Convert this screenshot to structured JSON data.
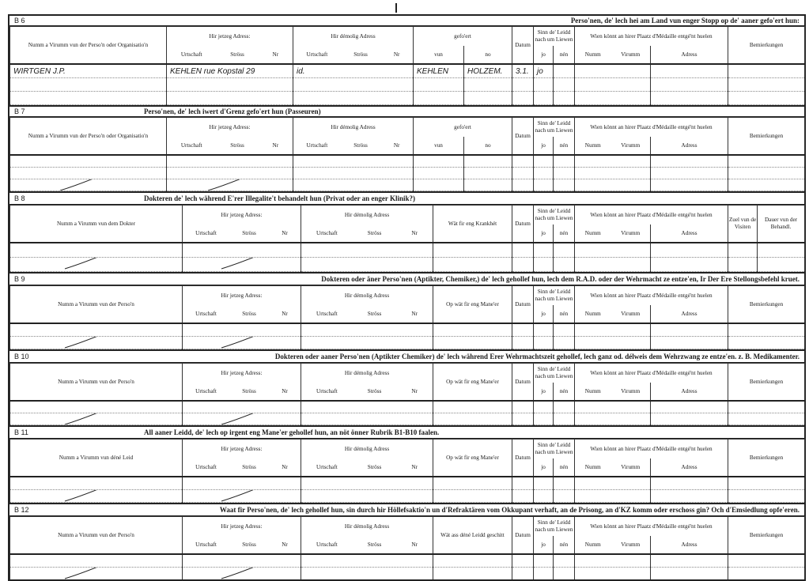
{
  "sections": [
    {
      "code": "B 6",
      "title": "Perso'nen, de' lech hei am Land vun enger Stopp op de' aaner gefo'ert hun:",
      "columns": [
        {
          "label": "Numm a Virumm vun der Perso'n oder Organisatio'n"
        },
        {
          "label": "Hir jetzeg Adress:",
          "subs": [
            [
              "Urtschaft",
              "Ströss",
              "Nr"
            ]
          ]
        },
        {
          "label": "Hir démolig Adress",
          "subs": [
            [
              "Urtschaft",
              "Ströss",
              "Nr"
            ]
          ]
        },
        {
          "label": "gefo'ert",
          "subs": [
            [
              "vun"
            ],
            [
              "no"
            ]
          ]
        },
        {
          "label": "Datum"
        },
        {
          "label": "Sinn de' Leidd nach um Liewen",
          "subs": [
            [
              "jo"
            ],
            [
              "nén"
            ]
          ]
        },
        {
          "label": "Wien könnt an hirer Plaatz d'Médaille entgé'nt huelen",
          "subs": [
            [
              "Numm",
              "Virumm"
            ],
            [
              "Adress"
            ]
          ]
        },
        {
          "label": "Bemierkungen"
        }
      ],
      "rows": [
        [
          "WIRTGEN J.P.",
          "KEHLEN rue Kopstal 29",
          "id.",
          "KEHLEN",
          "HOLZEM.",
          "3.1.",
          "jo",
          "",
          "",
          "",
          ""
        ],
        [
          "",
          "",
          "",
          "",
          "",
          "",
          "",
          "",
          "",
          "",
          ""
        ],
        [
          "",
          "",
          "",
          "",
          "",
          "",
          "",
          "",
          "",
          "",
          ""
        ]
      ]
    },
    {
      "code": "B 7",
      "title": "Perso'nen, de' lech iwert d'Grenz gefo'ert hun (Passeuren)",
      "columns": [
        {
          "label": "Numm a Virumm vun der Perso'n oder Organisatio'n"
        },
        {
          "label": "Hir jetzeg Adress:",
          "subs": [
            [
              "Urtschaft",
              "Ströss",
              "Nr"
            ]
          ]
        },
        {
          "label": "Hir démolig Adress",
          "subs": [
            [
              "Urtschaft",
              "Ströss",
              "Nr"
            ]
          ]
        },
        {
          "label": "gefo'ert",
          "subs": [
            [
              "vun"
            ],
            [
              "no"
            ]
          ]
        },
        {
          "label": "Datum"
        },
        {
          "label": "Sinn de' Leidd nach um Liewen",
          "subs": [
            [
              "jo"
            ],
            [
              "nén"
            ]
          ]
        },
        {
          "label": "Wien könnt an hirer Plaatz d'Médaille entgé'nt huelen",
          "subs": [
            [
              "Numm",
              "Virumm"
            ],
            [
              "Adress"
            ]
          ]
        },
        {
          "label": "Bemierkungen"
        }
      ],
      "rows": [
        [
          "",
          "",
          "",
          "",
          "",
          "",
          "",
          "",
          "",
          "",
          ""
        ],
        [
          "",
          "",
          "",
          "",
          "",
          "",
          "",
          "",
          "",
          "",
          ""
        ],
        [
          "",
          "",
          "",
          "",
          "",
          "",
          "",
          "",
          "",
          "",
          ""
        ]
      ]
    },
    {
      "code": "B 8",
      "title": "Dokteren de' lech während E'rer Illegalite't behandelt hun (Privat oder an enger Klinik?)",
      "columns": [
        {
          "label": "Numm a Virumm vun dem Dokter"
        },
        {
          "label": "Hir jetzeg Adress:",
          "subs": [
            [
              "Urtschaft",
              "Ströss",
              "Nr"
            ]
          ]
        },
        {
          "label": "Hir démolig Adress",
          "subs": [
            [
              "Urtschaft",
              "Ströss",
              "Nr"
            ]
          ]
        },
        {
          "label": "Wät fir eng Krankhét"
        },
        {
          "label": "Datum"
        },
        {
          "label": "Sinn de' Leidd nach um Liewen",
          "subs": [
            [
              "jo"
            ],
            [
              "nén"
            ]
          ]
        },
        {
          "label": "Wien könnt an hirer Plaatz d'Médaille entgé'nt huelen",
          "subs": [
            [
              "Numm",
              "Virumm"
            ],
            [
              "Adress"
            ]
          ]
        },
        {
          "label": "Zuel vun de Visiten"
        },
        {
          "label": "Dauer vun der Behandl."
        }
      ],
      "rows": [
        [
          "",
          "",
          "",
          "",
          "",
          "",
          "",
          "",
          "",
          "",
          ""
        ],
        [
          "",
          "",
          "",
          "",
          "",
          "",
          "",
          "",
          "",
          "",
          ""
        ]
      ]
    },
    {
      "code": "B 9",
      "title": "Dokteren oder äner Perso'nen (Aptikter, Chemiker,) de' lech gehollef hun, lech dem R.A.D. oder der Wehrmacht ze entze'en, Ir Der Ere Stellongsbefehl kruet.",
      "columns": [
        {
          "label": "Numm a Virumm vun der Perso'n"
        },
        {
          "label": "Hir jetzeg Adress:",
          "subs": [
            [
              "Urtschaft",
              "Ströss",
              "Nr"
            ]
          ]
        },
        {
          "label": "Hir démolig Adress",
          "subs": [
            [
              "Urtschaft",
              "Ströss",
              "Nr"
            ]
          ]
        },
        {
          "label": "Op wät fir eng Mane'er"
        },
        {
          "label": "Datum"
        },
        {
          "label": "Sinn de' Leidd nach um Liewen",
          "subs": [
            [
              "jo"
            ],
            [
              "nén"
            ]
          ]
        },
        {
          "label": "Wien könnt an hirer Plaatz d'Médaille entgé'nt huelen",
          "subs": [
            [
              "Numm",
              "Virumm"
            ],
            [
              "Adress"
            ]
          ]
        },
        {
          "label": "Bemierkungen"
        }
      ],
      "rows": [
        [
          "",
          "",
          "",
          "",
          "",
          "",
          "",
          "",
          "",
          ""
        ],
        [
          "",
          "",
          "",
          "",
          "",
          "",
          "",
          "",
          "",
          ""
        ]
      ]
    },
    {
      "code": "B 10",
      "title": "Dokteren oder aaner Perso'nen (Aptikter Chemiker) de' lech während Erer Wehrmachtszeit gehollef, lech ganz od. délweis dem Wehrzwang ze entze'en. z. B. Medikamenter.",
      "columns": [
        {
          "label": "Numm a Virumm vun der Perso'n"
        },
        {
          "label": "Hir jetzeg Adress:",
          "subs": [
            [
              "Urtschaft",
              "Ströss",
              "Nr"
            ]
          ]
        },
        {
          "label": "Hir démolig Adress",
          "subs": [
            [
              "Urtschaft",
              "Ströss",
              "Nr"
            ]
          ]
        },
        {
          "label": "Op wät fir eng Mane'er"
        },
        {
          "label": "Datum"
        },
        {
          "label": "Sinn de' Leidd nach um Liewen",
          "subs": [
            [
              "jo"
            ],
            [
              "nén"
            ]
          ]
        },
        {
          "label": "Wien könnt an hirer Plaatz d'Médaille entgé'nt huelen",
          "subs": [
            [
              "Numm",
              "Virumm"
            ],
            [
              "Adress"
            ]
          ]
        },
        {
          "label": "Bemierkungen"
        }
      ],
      "rows": [
        [
          "",
          "",
          "",
          "",
          "",
          "",
          "",
          "",
          "",
          ""
        ],
        [
          "",
          "",
          "",
          "",
          "",
          "",
          "",
          "",
          "",
          ""
        ]
      ]
    },
    {
      "code": "B 11",
      "title": "All aaner Leidd, de' lech op irgent eng Mane'er gehollef hun, an nöt önner Rubrik B1-B10 faalen.",
      "columns": [
        {
          "label": "Numm a Virumm vun déné Leid"
        },
        {
          "label": "Hir jetzeg Adress:",
          "subs": [
            [
              "Urtschaft",
              "Ströss",
              "Nr"
            ]
          ]
        },
        {
          "label": "Hir démolig Adress",
          "subs": [
            [
              "Urtschaft",
              "Ströss",
              "Nr"
            ]
          ]
        },
        {
          "label": "Op wät fir eng Mane'er"
        },
        {
          "label": "Datum"
        },
        {
          "label": "Sinn de' Leidd nach um Liewen",
          "subs": [
            [
              "jo"
            ],
            [
              "nén"
            ]
          ]
        },
        {
          "label": "Wien könnt an hirer Plaatz d'Médaille entgé'nt huelen",
          "subs": [
            [
              "Numm",
              "Virumm"
            ],
            [
              "Adress"
            ]
          ]
        },
        {
          "label": "Bemierkungen"
        }
      ],
      "rows": [
        [
          "",
          "",
          "",
          "",
          "",
          "",
          "",
          "",
          "",
          ""
        ],
        [
          "",
          "",
          "",
          "",
          "",
          "",
          "",
          "",
          "",
          ""
        ]
      ]
    },
    {
      "code": "B 12",
      "title": "Waat fir Perso'nen, de' lech gehollef hun, sin durch hir Höllefsaktio'n un d'Refraktären vom Okkupant verhaft, an de Prisong, an d'KZ komm oder erschoss gin? Och d'Emsiedlung opfe'eren.",
      "columns": [
        {
          "label": "Numm a Virumm vun der Perso'n"
        },
        {
          "label": "Hir jetzeg Adress:",
          "subs": [
            [
              "Urtschaft",
              "Ströss",
              "Nr"
            ]
          ]
        },
        {
          "label": "Hir démolig Adress",
          "subs": [
            [
              "Urtschaft",
              "Ströss",
              "Nr"
            ]
          ]
        },
        {
          "label": "Wät ass déné Leidd geschitt"
        },
        {
          "label": "Datum"
        },
        {
          "label": "Sinn de' Leidd nach um Liewen",
          "subs": [
            [
              "jo"
            ],
            [
              "nén"
            ]
          ]
        },
        {
          "label": "Wien könnt an hirer Plaatz d'Médaille entgé'nt huelen",
          "subs": [
            [
              "Numm",
              "Virumm"
            ],
            [
              "Adress"
            ]
          ]
        },
        {
          "label": "Bemierkungen"
        }
      ],
      "rows": [
        [
          "",
          "",
          "",
          "",
          "",
          "",
          "",
          "",
          "",
          ""
        ],
        [
          "",
          "",
          "",
          "",
          "",
          "",
          "",
          "",
          "",
          ""
        ]
      ]
    }
  ]
}
